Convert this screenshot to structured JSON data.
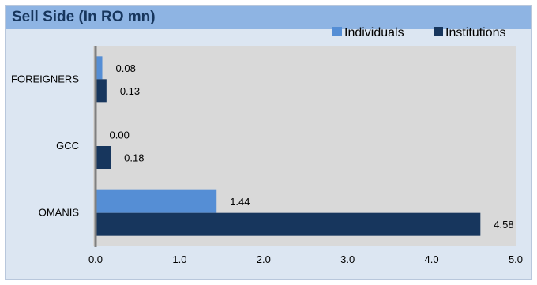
{
  "title": "Sell Side (In RO mn)",
  "colors": {
    "individuals": "#558ed5",
    "institutions": "#17365d",
    "plot_bg": "#d9d9d9",
    "axis": "#808080"
  },
  "chart_data": {
    "type": "bar",
    "orientation": "horizontal",
    "title": "Sell Side (In RO mn)",
    "categories": [
      "FOREIGNERS",
      "GCC",
      "OMANIS"
    ],
    "series": [
      {
        "name": "Individuals",
        "values": [
          0.08,
          0.0,
          1.44
        ],
        "labels": [
          "0.08",
          "0.00",
          "1.44"
        ]
      },
      {
        "name": "Institutions",
        "values": [
          0.13,
          0.18,
          4.58
        ],
        "labels": [
          "0.13",
          "0.18",
          "4.58"
        ]
      }
    ],
    "xlim": [
      0,
      5
    ],
    "ticks": [
      0,
      1,
      2,
      3,
      4,
      5
    ],
    "tick_labels": [
      "0.0",
      "1.0",
      "2.0",
      "3.0",
      "4.0",
      "5.0"
    ],
    "legend": "top-right",
    "grid": false
  }
}
